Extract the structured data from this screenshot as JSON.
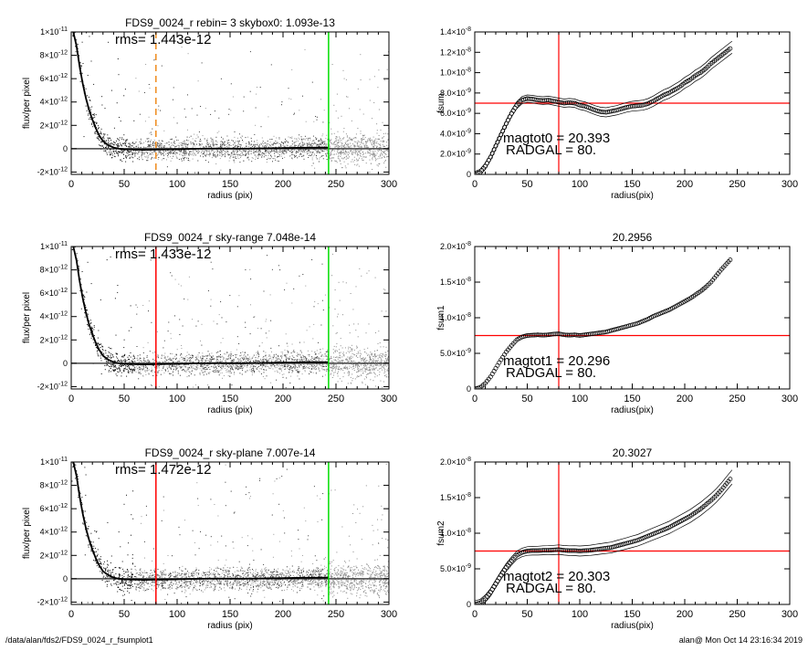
{
  "footer": {
    "left": "/data/alan/fds2/FDS9_0024_r_fsumplot1",
    "right": "alan@  Mon Oct 14 23:16:34 2019"
  },
  "colors": {
    "red": "#ff0000",
    "green": "#00dd00",
    "orange": "#f08a1c",
    "scatter": "#9a9a9a",
    "profile": "#000000"
  },
  "chart_data": [
    {
      "type": "scatter",
      "title": "FDS9_0024_r rebin= 3    skybox0:  1.093e-13",
      "annotation": "rms= 1.443e-12",
      "xlabel": "radius (pix)",
      "ylabel": "flux/per pixel",
      "xlim": [
        0,
        300
      ],
      "ylim": [
        -2.2e-12,
        1e-11
      ],
      "xticks": [
        "0",
        "50",
        "100",
        "150",
        "200",
        "250",
        "300"
      ],
      "yticks": [
        {
          "v": 1e-11,
          "m": "1×10",
          "e": "-11"
        },
        {
          "v": 8e-12,
          "m": "8×10",
          "e": "-12"
        },
        {
          "v": 6e-12,
          "m": "6×10",
          "e": "-12"
        },
        {
          "v": 4e-12,
          "m": "4×10",
          "e": "-12"
        },
        {
          "v": 2e-12,
          "m": "2×10",
          "e": "-12"
        },
        {
          "v": 0,
          "m": "0",
          "e": ""
        },
        {
          "v": -2e-12,
          "m": "-2×10",
          "e": "-12"
        }
      ],
      "vlines": [
        {
          "x": 80,
          "color": "orange",
          "dashed": true
        },
        {
          "x": 243,
          "color": "green",
          "dashed": false
        }
      ],
      "profile_x": [
        2,
        5,
        8,
        11,
        14,
        17,
        20,
        23,
        26,
        30,
        35,
        40,
        45,
        50,
        60,
        70,
        80,
        100,
        120,
        140,
        160,
        180,
        200,
        220,
        243
      ],
      "profile_y": [
        1e-11,
        8.8e-12,
        7e-12,
        5.5e-12,
        4.3e-12,
        3.3e-12,
        2.5e-12,
        1.8e-12,
        1.2e-12,
        6.5e-13,
        3e-13,
        1e-13,
        0,
        -5e-14,
        -8e-14,
        -1e-13,
        -8e-14,
        -5e-14,
        0,
        2e-14,
        0,
        3e-14,
        5e-14,
        8e-14,
        1e-13
      ]
    },
    {
      "type": "line",
      "title": "",
      "xlabel": "radius(pix)",
      "ylabel": "fsum",
      "xlim": [
        0,
        300
      ],
      "ylim": [
        0,
        1.4e-08
      ],
      "xticks": [
        "0",
        "50",
        "100",
        "150",
        "200",
        "250",
        "300"
      ],
      "yticks": [
        {
          "v": 1.4e-08,
          "m": "1.4×10",
          "e": "-8"
        },
        {
          "v": 1.2e-08,
          "m": "1.2×10",
          "e": "-8"
        },
        {
          "v": 1e-08,
          "m": "1.0×10",
          "e": "-8"
        },
        {
          "v": 8e-09,
          "m": "8.0×10",
          "e": "-9"
        },
        {
          "v": 6e-09,
          "m": "6.0×10",
          "e": "-9"
        },
        {
          "v": 4e-09,
          "m": "4.0×10",
          "e": "-9"
        },
        {
          "v": 2e-09,
          "m": "2.0×10",
          "e": "-9"
        },
        {
          "v": 0,
          "m": "0",
          "e": ""
        }
      ],
      "annotations": [
        "magtot0 =  20.393",
        "RADGAL =     80."
      ],
      "vline_x": 80,
      "hline_y": 7e-09,
      "curve_x": [
        0,
        5,
        10,
        15,
        20,
        25,
        30,
        35,
        40,
        45,
        50,
        55,
        60,
        65,
        70,
        75,
        80,
        85,
        90,
        95,
        100,
        105,
        110,
        115,
        120,
        125,
        130,
        135,
        140,
        145,
        150,
        155,
        160,
        165,
        170,
        175,
        180,
        185,
        190,
        195,
        200,
        205,
        210,
        215,
        220,
        225,
        230,
        235,
        240,
        245
      ],
      "curve_y": [
        0,
        2e-10,
        8e-10,
        1.7e-09,
        2.8e-09,
        3.9e-09,
        5e-09,
        6e-09,
        6.8e-09,
        7.3e-09,
        7.45e-09,
        7.4e-09,
        7.3e-09,
        7.25e-09,
        7.3e-09,
        7.2e-09,
        7.1e-09,
        7e-09,
        7.05e-09,
        7e-09,
        6.8e-09,
        6.7e-09,
        6.5e-09,
        6.3e-09,
        6.15e-09,
        6.1e-09,
        6.2e-09,
        6.3e-09,
        6.45e-09,
        6.6e-09,
        6.7e-09,
        6.75e-09,
        6.8e-09,
        6.95e-09,
        7.2e-09,
        7.5e-09,
        7.8e-09,
        8e-09,
        8.3e-09,
        8.6e-09,
        9e-09,
        9.3e-09,
        9.7e-09,
        1e-08,
        1.04e-08,
        1.09e-08,
        1.13e-08,
        1.17e-08,
        1.21e-08,
        1.25e-08
      ],
      "band": 3e-10
    },
    {
      "type": "scatter",
      "title": "FDS9_0024_r sky-range  7.048e-14",
      "annotation": "rms= 1.433e-12",
      "xlabel": "radius (pix)",
      "ylabel": "flux/per pixel",
      "xlim": [
        0,
        300
      ],
      "ylim": [
        -2.2e-12,
        1e-11
      ],
      "xticks": [
        "0",
        "50",
        "100",
        "150",
        "200",
        "250",
        "300"
      ],
      "yticks": [
        {
          "v": 1e-11,
          "m": "1×10",
          "e": "-11"
        },
        {
          "v": 8e-12,
          "m": "8×10",
          "e": "-12"
        },
        {
          "v": 6e-12,
          "m": "6×10",
          "e": "-12"
        },
        {
          "v": 4e-12,
          "m": "4×10",
          "e": "-12"
        },
        {
          "v": 2e-12,
          "m": "2×10",
          "e": "-12"
        },
        {
          "v": 0,
          "m": "0",
          "e": ""
        },
        {
          "v": -2e-12,
          "m": "-2×10",
          "e": "-12"
        }
      ],
      "vlines": [
        {
          "x": 80,
          "color": "red",
          "dashed": false
        },
        {
          "x": 243,
          "color": "green",
          "dashed": false
        }
      ],
      "profile_x": [
        2,
        5,
        8,
        11,
        14,
        17,
        20,
        23,
        26,
        30,
        35,
        40,
        45,
        50,
        60,
        70,
        80,
        100,
        120,
        140,
        160,
        180,
        200,
        220,
        243
      ],
      "profile_y": [
        1e-11,
        8.8e-12,
        7e-12,
        5.5e-12,
        4.3e-12,
        3.3e-12,
        2.5e-12,
        1.8e-12,
        1.2e-12,
        6.5e-13,
        3e-13,
        1e-13,
        0,
        -5e-14,
        -8e-14,
        -1e-13,
        -8e-14,
        -5e-14,
        0,
        2e-14,
        0,
        3e-14,
        5e-14,
        8e-14,
        1e-13
      ]
    },
    {
      "type": "line",
      "title": "20.2956",
      "xlabel": "radius(pix)",
      "ylabel": "fsum1",
      "xlim": [
        0,
        300
      ],
      "ylim": [
        0,
        2e-08
      ],
      "xticks": [
        "0",
        "50",
        "100",
        "150",
        "200",
        "250",
        "300"
      ],
      "yticks": [
        {
          "v": 2e-08,
          "m": "2.0×10",
          "e": "-8"
        },
        {
          "v": 1.5e-08,
          "m": "1.5×10",
          "e": "-8"
        },
        {
          "v": 1e-08,
          "m": "1.0×10",
          "e": "-8"
        },
        {
          "v": 5e-09,
          "m": "5.0×10",
          "e": "-9"
        },
        {
          "v": 0,
          "m": "0",
          "e": ""
        }
      ],
      "annotations": [
        "magtot1 =  20.296",
        "RADGAL =     80."
      ],
      "vline_x": 80,
      "hline_y": 7.5e-09,
      "curve_x": [
        0,
        5,
        10,
        15,
        20,
        25,
        30,
        35,
        40,
        45,
        50,
        55,
        60,
        65,
        70,
        75,
        80,
        85,
        90,
        95,
        100,
        105,
        110,
        115,
        120,
        125,
        130,
        135,
        140,
        145,
        150,
        155,
        160,
        165,
        170,
        175,
        180,
        185,
        190,
        195,
        200,
        205,
        210,
        215,
        220,
        225,
        230,
        235,
        240,
        245
      ],
      "curve_y": [
        0,
        2e-10,
        8e-10,
        1.7e-09,
        2.9e-09,
        4.1e-09,
        5.2e-09,
        6.1e-09,
        6.9e-09,
        7.3e-09,
        7.5e-09,
        7.55e-09,
        7.6e-09,
        7.55e-09,
        7.6e-09,
        7.7e-09,
        7.75e-09,
        7.6e-09,
        7.55e-09,
        7.6e-09,
        7.5e-09,
        7.6e-09,
        7.7e-09,
        7.8e-09,
        7.9e-09,
        8e-09,
        8.2e-09,
        8.4e-09,
        8.6e-09,
        8.8e-09,
        9e-09,
        9.2e-09,
        9.5e-09,
        9.8e-09,
        1.02e-08,
        1.05e-08,
        1.08e-08,
        1.11e-08,
        1.15e-08,
        1.19e-08,
        1.23e-08,
        1.27e-08,
        1.32e-08,
        1.37e-08,
        1.43e-08,
        1.5e-08,
        1.59e-08,
        1.68e-08,
        1.76e-08,
        1.84e-08
      ],
      "band": 0
    },
    {
      "type": "scatter",
      "title": "FDS9_0024_r sky-plane  7.007e-14",
      "annotation": "rms= 1.472e-12",
      "xlabel": "radius (pix)",
      "ylabel": "flux/per pixel",
      "xlim": [
        0,
        300
      ],
      "ylim": [
        -2.2e-12,
        1e-11
      ],
      "xticks": [
        "0",
        "50",
        "100",
        "150",
        "200",
        "250",
        "300"
      ],
      "yticks": [
        {
          "v": 1e-11,
          "m": "1×10",
          "e": "-11"
        },
        {
          "v": 8e-12,
          "m": "8×10",
          "e": "-12"
        },
        {
          "v": 6e-12,
          "m": "6×10",
          "e": "-12"
        },
        {
          "v": 4e-12,
          "m": "4×10",
          "e": "-12"
        },
        {
          "v": 2e-12,
          "m": "2×10",
          "e": "-12"
        },
        {
          "v": 0,
          "m": "0",
          "e": ""
        },
        {
          "v": -2e-12,
          "m": "-2×10",
          "e": "-12"
        }
      ],
      "vlines": [
        {
          "x": 80,
          "color": "red",
          "dashed": false
        },
        {
          "x": 243,
          "color": "green",
          "dashed": false
        }
      ],
      "profile_x": [
        2,
        5,
        8,
        11,
        14,
        17,
        20,
        23,
        26,
        30,
        35,
        40,
        45,
        50,
        60,
        70,
        80,
        100,
        120,
        140,
        160,
        180,
        200,
        220,
        243
      ],
      "profile_y": [
        1e-11,
        8.8e-12,
        7e-12,
        5.5e-12,
        4.3e-12,
        3.3e-12,
        2.5e-12,
        1.8e-12,
        1.2e-12,
        6.5e-13,
        3e-13,
        1e-13,
        0,
        -5e-14,
        -8e-14,
        -1e-13,
        -8e-14,
        -5e-14,
        0,
        2e-14,
        0,
        3e-14,
        5e-14,
        8e-14,
        1e-13
      ]
    },
    {
      "type": "line",
      "title": "20.3027",
      "xlabel": "radius(pix)",
      "ylabel": "fsum2",
      "xlim": [
        0,
        300
      ],
      "ylim": [
        0,
        2e-08
      ],
      "xticks": [
        "0",
        "50",
        "100",
        "150",
        "200",
        "250",
        "300"
      ],
      "yticks": [
        {
          "v": 2e-08,
          "m": "2.0×10",
          "e": "-8"
        },
        {
          "v": 1.5e-08,
          "m": "1.5×10",
          "e": "-8"
        },
        {
          "v": 1e-08,
          "m": "1.0×10",
          "e": "-8"
        },
        {
          "v": 5e-09,
          "m": "5.0×10",
          "e": "-9"
        },
        {
          "v": 0,
          "m": "0",
          "e": ""
        }
      ],
      "annotations": [
        "magtot2 =  20.303",
        "RADGAL =     80."
      ],
      "vline_x": 80,
      "hline_y": 7.5e-09,
      "curve_x": [
        0,
        5,
        10,
        15,
        20,
        25,
        30,
        35,
        40,
        45,
        50,
        55,
        60,
        65,
        70,
        75,
        80,
        85,
        90,
        95,
        100,
        105,
        110,
        115,
        120,
        125,
        130,
        135,
        140,
        145,
        150,
        155,
        160,
        165,
        170,
        175,
        180,
        185,
        190,
        195,
        200,
        205,
        210,
        215,
        220,
        225,
        230,
        235,
        240,
        245
      ],
      "curve_y": [
        0,
        2e-10,
        8e-10,
        1.7e-09,
        2.9e-09,
        4.1e-09,
        5.2e-09,
        6.1e-09,
        6.9e-09,
        7.3e-09,
        7.5e-09,
        7.55e-09,
        7.55e-09,
        7.6e-09,
        7.6e-09,
        7.65e-09,
        7.7e-09,
        7.6e-09,
        7.55e-09,
        7.55e-09,
        7.5e-09,
        7.55e-09,
        7.6e-09,
        7.7e-09,
        7.8e-09,
        7.9e-09,
        8e-09,
        8.2e-09,
        8.4e-09,
        8.6e-09,
        8.8e-09,
        9e-09,
        9.3e-09,
        9.6e-09,
        9.9e-09,
        1.02e-08,
        1.05e-08,
        1.08e-08,
        1.12e-08,
        1.16e-08,
        1.2e-08,
        1.24e-08,
        1.29e-08,
        1.34e-08,
        1.4e-08,
        1.46e-08,
        1.53e-08,
        1.61e-08,
        1.7e-08,
        1.79e-08
      ],
      "band": 5e-10
    }
  ]
}
